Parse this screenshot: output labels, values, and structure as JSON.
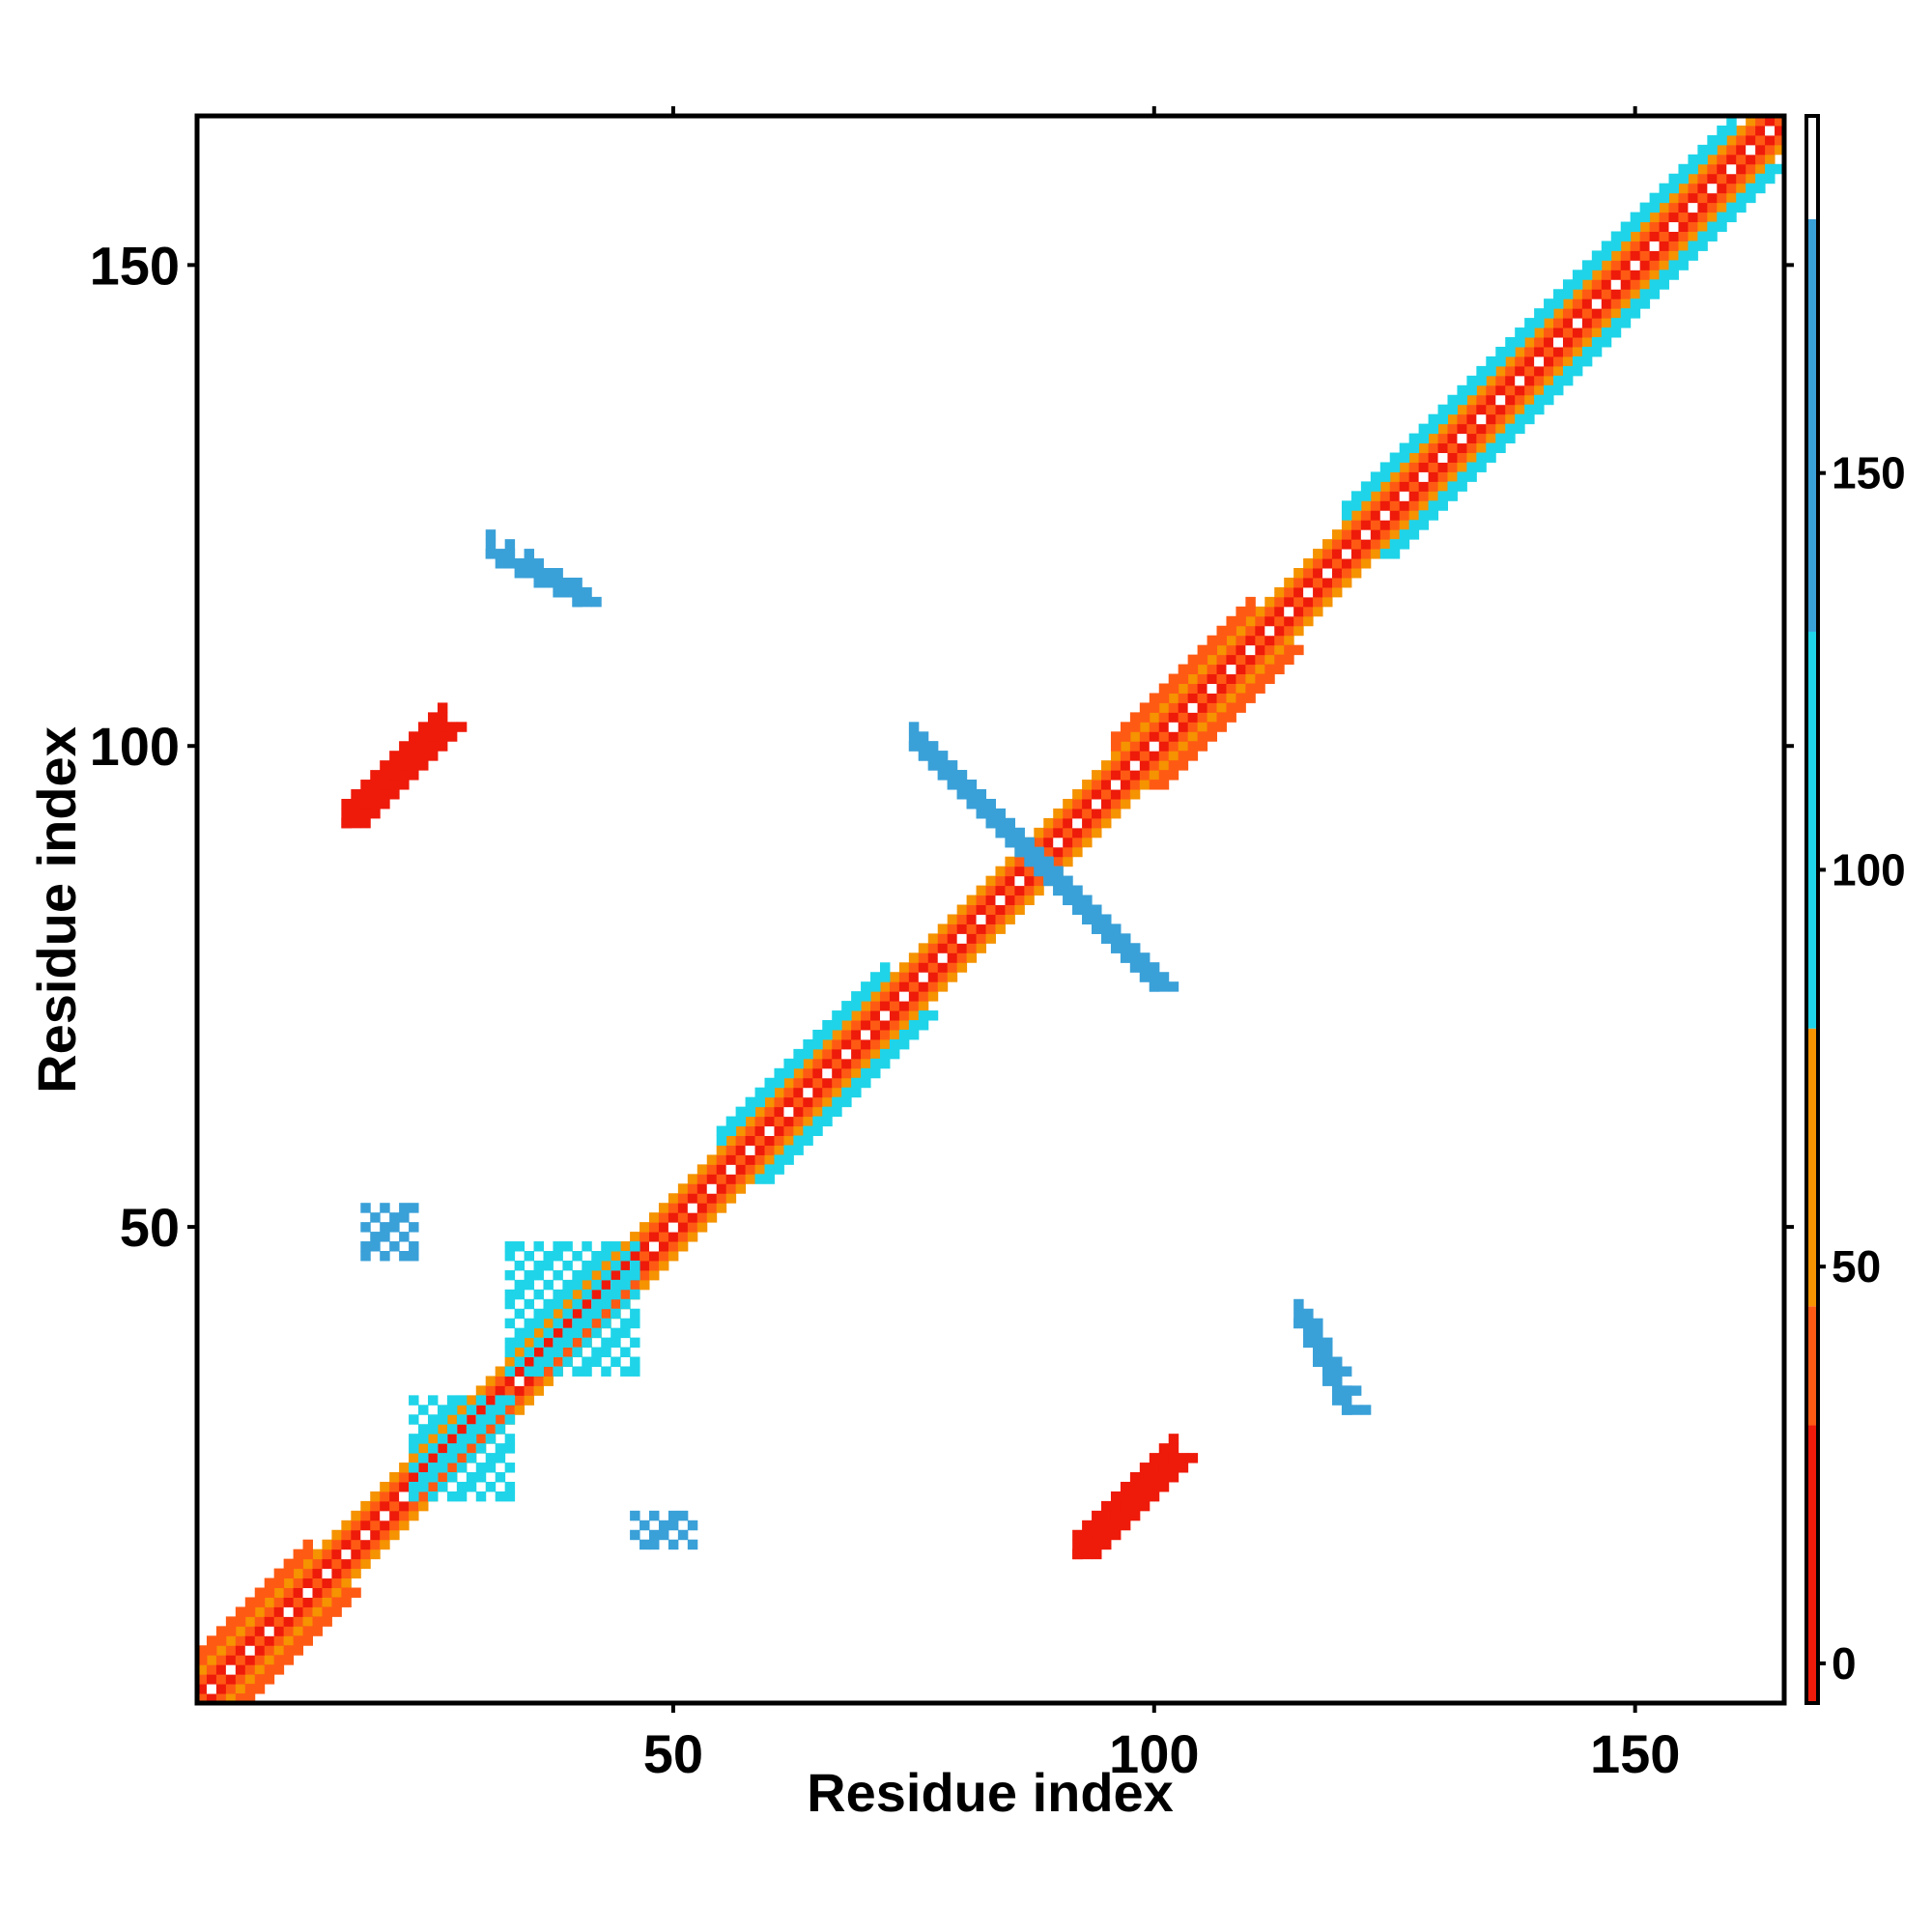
{
  "chart_data": {
    "type": "heatmap",
    "title": "",
    "xlabel": "Residue index",
    "ylabel": "Residue index",
    "xlim": [
      1,
      165
    ],
    "ylim": [
      1,
      165
    ],
    "x_ticks": [
      50,
      100,
      150
    ],
    "y_ticks": [
      50,
      100,
      150
    ],
    "colorbar": {
      "ticks": [
        0,
        50,
        100,
        150
      ],
      "range": [
        -5,
        195
      ],
      "bins": [
        {
          "from": -5,
          "to": 30,
          "color": "#ee1a0a"
        },
        {
          "from": 30,
          "to": 45,
          "color": "#ff5a14"
        },
        {
          "from": 45,
          "to": 80,
          "color": "#f59300"
        },
        {
          "from": 80,
          "to": 130,
          "color": "#1fd4e8"
        },
        {
          "from": 130,
          "to": 182,
          "color": "#3aa0d8"
        },
        {
          "from": 182,
          "to": 195,
          "color": "#ffffff"
        }
      ]
    },
    "colors": {
      "red": "#ee1a0a",
      "orange_red": "#ff5a14",
      "orange": "#f59300",
      "cyan": "#1fd4e8",
      "blue": "#3aa0d8",
      "steel_blue": "#4a86c8"
    },
    "cells_note_values": "Each feature lists [x, y, value] residue pairs; diagonal ribbon spans residues 1-165 symmetric in x/y.",
    "features": [
      {
        "kind": "diagonal",
        "x": [
          1,
          165
        ],
        "value": 20
      },
      {
        "kind": "helix_band",
        "x": [
          1,
          12
        ],
        "value": 40
      },
      {
        "kind": "helix_band",
        "x": [
          55,
          72
        ],
        "value": 110
      },
      {
        "kind": "helix_band",
        "x": [
          96,
          110
        ],
        "value": 40
      },
      {
        "kind": "helix_band",
        "x": [
          120,
          160
        ],
        "value": 110
      },
      {
        "kind": "anti_strand",
        "x": [
          75,
          90
        ],
        "y": [
          100,
          85
        ],
        "value": 160
      },
      {
        "kind": "anti_strand",
        "x": [
          90,
          100
        ],
        "y": [
          85,
          75
        ],
        "value": 160
      },
      {
        "kind": "anti_strand",
        "x": [
          31,
          40
        ],
        "y": [
          120,
          115
        ],
        "value": 160
      },
      {
        "kind": "anti_strand",
        "x": [
          115,
          120
        ],
        "y": [
          40,
          31
        ],
        "value": 160
      },
      {
        "kind": "parallel_strand",
        "x": [
          16,
          26
        ],
        "y": [
          92,
          102
        ],
        "value": 20
      },
      {
        "kind": "parallel_strand",
        "x": [
          92,
          102
        ],
        "y": [
          16,
          26
        ],
        "value": 20
      },
      {
        "kind": "blob",
        "x": [
          33,
          46
        ],
        "y": [
          35,
          48
        ],
        "value": 120
      },
      {
        "kind": "blob",
        "x": [
          23,
          33
        ],
        "y": [
          22,
          32
        ],
        "value": 120
      },
      {
        "kind": "blob",
        "x": [
          46,
          52
        ],
        "y": [
          17,
          20
        ],
        "value": 150
      },
      {
        "kind": "blob",
        "x": [
          18,
          23
        ],
        "y": [
          47,
          52
        ],
        "value": 150
      }
    ]
  }
}
